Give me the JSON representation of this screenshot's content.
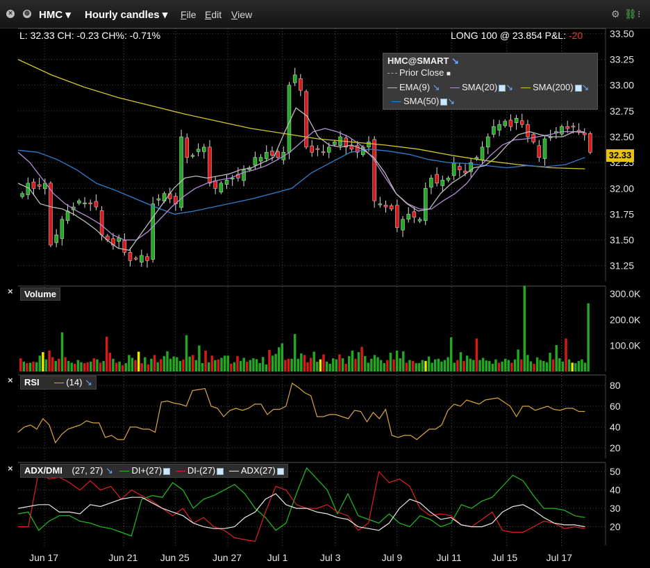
{
  "titlebar": {
    "symbol": "HMC",
    "interval": "Hourly candles",
    "menus": [
      "File",
      "Edit",
      "View"
    ]
  },
  "price_panel": {
    "summary": "L: 32.33 CH: -0.23 CH%: -0.71%",
    "position": "LONG 100 @ 23.854 P&L:",
    "pnl": "-20",
    "price_tag": "32.33",
    "legend": {
      "title": "HMC@SMART",
      "items": [
        "Prior Close",
        "EMA(9)",
        "SMA(20)",
        "SMA(200)",
        "SMA(50)"
      ]
    }
  },
  "volume_panel": {
    "title": "Volume"
  },
  "rsi_panel": {
    "title": "RSI",
    "param": "(14)"
  },
  "adx_panel": {
    "title": "ADX/DMI",
    "param": "(27, 27)",
    "di_plus": "DI+(27)",
    "di_minus": "DI-(27)",
    "adx": "ADX(27)"
  },
  "colors": {
    "up": "#22a822",
    "down": "#d61a1a",
    "yellow": "#e8e800",
    "ema9": "#bdbdbd",
    "sma20": "#b48ad6",
    "sma200": "#d4c829",
    "sma50": "#2f7fd0",
    "rsi": "#d8a640",
    "di_plus": "#20c020",
    "di_minus": "#e02020",
    "adx": "#e8e8e8"
  },
  "chart_data": [
    {
      "type": "candlestick",
      "title": "HMC",
      "x_ticks": [
        "Jun 17",
        "Jun 21",
        "Jun 25",
        "Jun 27",
        "Jul 1",
        "Jul 3",
        "Jul 9",
        "Jul 11",
        "Jul 15",
        "Jul 17"
      ],
      "y_ticks": [
        31.25,
        31.5,
        31.75,
        32.0,
        32.25,
        32.5,
        32.75,
        33.0,
        33.25,
        33.5
      ],
      "ylim": [
        31.1,
        33.55
      ],
      "close_path": [
        31.95,
        32.05,
        32.0,
        32.02,
        32.05,
        31.45,
        31.55,
        31.7,
        31.78,
        31.82,
        31.88,
        31.86,
        31.85,
        31.82,
        31.55,
        31.5,
        31.45,
        31.52,
        31.38,
        31.3,
        31.32,
        31.35,
        31.3,
        31.85,
        31.9,
        31.95,
        31.9,
        31.85,
        32.5,
        32.3,
        32.32,
        32.38,
        32.4,
        32.05,
        32.0,
        32.05,
        32.08,
        32.1,
        32.1,
        32.18,
        32.2,
        32.3,
        32.3,
        32.35,
        32.32,
        32.3,
        32.35,
        33.0,
        33.1,
        32.95,
        32.4,
        32.35,
        32.38,
        32.35,
        32.4,
        32.45,
        32.5,
        32.4,
        32.38,
        32.35,
        32.4,
        32.45,
        31.88,
        31.85,
        31.82,
        31.8,
        31.62,
        31.7,
        31.75,
        31.72,
        31.7,
        32.0,
        32.1,
        32.05,
        32.08,
        32.1,
        32.25,
        32.18,
        32.15,
        32.25,
        32.3,
        32.4,
        32.5,
        32.6,
        32.62,
        32.65,
        32.6,
        32.68,
        32.62,
        32.5,
        32.45,
        32.3,
        32.48,
        32.5,
        32.55,
        32.6,
        32.58,
        32.6,
        32.55,
        32.52,
        32.35
      ],
      "ema9": [
        32.05,
        32.0,
        31.85,
        31.82,
        31.8,
        31.75,
        31.68,
        31.6,
        31.5,
        31.42,
        31.4,
        31.55,
        31.7,
        31.85,
        32.0,
        32.1,
        32.12,
        32.1,
        32.12,
        32.14,
        32.18,
        32.2,
        32.25,
        32.3,
        32.55,
        32.78,
        32.7,
        32.5,
        32.42,
        32.4,
        32.42,
        32.38,
        32.3,
        32.15,
        31.95,
        31.85,
        31.78,
        31.8,
        31.95,
        32.05,
        32.12,
        32.2,
        32.22,
        32.3,
        32.42,
        32.52,
        32.55,
        32.52,
        32.5,
        32.5,
        32.55,
        32.54
      ],
      "sma20": [
        32.35,
        32.25,
        32.1,
        31.95,
        31.85,
        31.78,
        31.72,
        31.65,
        31.55,
        31.5,
        31.5,
        31.58,
        31.7,
        31.82,
        31.92,
        32.0,
        32.05,
        32.08,
        32.1,
        32.15,
        32.18,
        32.22,
        32.28,
        32.35,
        32.45,
        32.55,
        32.58,
        32.55,
        32.5,
        32.42,
        32.3,
        32.12,
        31.95,
        31.85,
        31.8,
        31.8,
        31.88,
        31.95,
        32.05,
        32.2,
        32.32,
        32.42,
        32.47,
        32.48,
        32.5,
        32.52,
        32.55,
        32.55,
        32.55
      ],
      "sma200": [
        33.25,
        33.1,
        32.98,
        32.88,
        32.8,
        32.72,
        32.65,
        32.58,
        32.53,
        32.48,
        32.45,
        32.42,
        32.38,
        32.32,
        32.27,
        32.23,
        32.2,
        32.19
      ],
      "sma50": [
        32.37,
        32.35,
        32.28,
        32.18,
        32.05,
        31.98,
        31.9,
        31.82,
        31.75,
        31.78,
        31.82,
        31.86,
        31.9,
        31.95,
        32.0,
        32.15,
        32.25,
        32.35,
        32.38,
        32.36,
        32.33,
        32.28,
        32.25,
        32.24,
        32.22,
        32.2,
        32.22,
        32.21,
        32.23,
        32.3
      ]
    },
    {
      "type": "bar",
      "title": "Volume",
      "y_ticks": [
        "100.0K",
        "200.0K",
        "300.0K"
      ],
      "ylim": [
        0,
        330000
      ],
      "values": [
        60,
        45,
        38,
        40,
        45,
        42,
        72,
        88,
        55,
        95,
        65,
        48,
        58,
        178,
        65,
        48,
        40,
        35,
        52,
        42,
        38,
        42,
        45,
        60,
        55,
        40,
        48,
        158,
        85,
        58,
        40,
        45,
        28,
        38,
        75,
        62,
        52,
        90,
        38,
        65,
        32,
        58,
        75,
        42,
        56,
        70,
        92,
        58,
        68,
        65,
        48,
        55,
        165,
        68,
        75,
        52,
        118,
        38,
        95,
        42,
        72,
        52,
        55,
        62,
        72,
        72,
        36,
        42,
        70,
        48,
        62,
        44,
        52,
        60,
        56,
        38,
        66,
        32,
        98,
        72,
        80,
        110,
        128,
        52,
        58,
        58,
        170,
        58,
        82,
        75,
        42,
        62,
        90,
        44,
        55,
        78,
        45,
        35,
        60,
        55,
        78,
        60,
        35,
        70,
        95,
        58,
        88,
        112,
        70,
        40,
        58,
        75,
        65,
        52,
        38,
        52,
        85,
        55,
        95,
        60,
        92,
        40,
        52,
        48,
        38,
        38,
        52,
        48,
        68,
        40,
        55,
        58,
        45,
        52,
        65,
        155,
        40,
        52,
        88,
        48,
        72,
        58,
        52,
        150,
        52,
        62,
        50,
        48,
        35,
        55,
        40,
        45,
        58,
        52,
        40,
        55,
        100,
        55,
        390,
        75,
        46,
        35,
        64,
        52,
        48,
        42,
        85,
        55,
        120,
        60,
        45,
        150,
        55,
        40,
        38,
        48,
        55,
        40,
        310
      ],
      "colors": [
        "d",
        "u",
        "d",
        "u",
        "d",
        "u",
        "u",
        "y",
        "u",
        "d",
        "d",
        "u",
        "d",
        "u",
        "d",
        "u",
        "u",
        "d",
        "u",
        "u",
        "d",
        "d",
        "u",
        "d",
        "u",
        "d",
        "u",
        "d",
        "d",
        "u",
        "d",
        "u",
        "d",
        "u",
        "u",
        "u",
        "d",
        "y",
        "d",
        "u",
        "d",
        "u",
        "d",
        "u",
        "d",
        "u",
        "u",
        "u",
        "u",
        "u",
        "u",
        "d",
        "u",
        "u",
        "d",
        "u",
        "u",
        "u",
        "d",
        "u",
        "d",
        "u",
        "d",
        "u",
        "u",
        "u",
        "d",
        "u",
        "d",
        "u",
        "u",
        "d",
        "u",
        "u",
        "u",
        "u",
        "u",
        "u",
        "d",
        "u",
        "u",
        "u",
        "u",
        "d",
        "d",
        "u",
        "u",
        "u",
        "u",
        "d",
        "d",
        "d",
        "u",
        "u",
        "y",
        "d",
        "u",
        "u",
        "u",
        "u",
        "d",
        "u",
        "d",
        "u",
        "u",
        "d",
        "u",
        "d",
        "u",
        "u",
        "u",
        "u",
        "u",
        "u",
        "u",
        "d",
        "u",
        "d",
        "u",
        "u",
        "u",
        "d",
        "u",
        "d",
        "u",
        "u",
        "u",
        "y",
        "u",
        "u",
        "u",
        "u",
        "u",
        "u",
        "u",
        "u",
        "u",
        "d",
        "u",
        "d",
        "u",
        "u",
        "u",
        "d",
        "u",
        "u",
        "u",
        "u",
        "u",
        "u",
        "d",
        "u",
        "u",
        "u",
        "d",
        "u",
        "u",
        "d",
        "u",
        "u",
        "u",
        "d",
        "u",
        "u",
        "u",
        "u",
        "u",
        "d",
        "u",
        "u",
        "u",
        "d",
        "u",
        "y",
        "u",
        "u",
        "u",
        "u",
        "u",
        "u"
      ]
    },
    {
      "type": "line",
      "title": "RSI",
      "y_ticks": [
        20,
        40,
        60,
        80
      ],
      "ylim": [
        10,
        90
      ],
      "series": [
        {
          "name": "RSI (14)",
          "values": [
            35,
            40,
            42,
            38,
            48,
            42,
            25,
            33,
            38,
            40,
            42,
            46,
            44,
            44,
            30,
            32,
            28,
            28,
            40,
            40,
            38,
            38,
            35,
            64,
            65,
            63,
            62,
            60,
            75,
            76,
            77,
            60,
            58,
            50,
            56,
            58,
            56,
            58,
            62,
            62,
            52,
            57,
            57,
            60,
            82,
            78,
            73,
            70,
            50,
            50,
            52,
            52,
            50,
            48,
            56,
            55,
            45,
            54,
            48,
            57,
            32,
            30,
            32,
            32,
            28,
            33,
            38,
            38,
            42,
            56,
            62,
            60,
            66,
            64,
            62,
            66,
            67,
            68,
            64,
            60,
            50,
            60,
            60,
            56,
            58,
            60,
            57,
            56,
            58,
            58,
            55,
            55
          ]
        }
      ]
    },
    {
      "type": "line",
      "title": "ADX/DMI",
      "y_ticks": [
        20,
        30,
        40,
        50
      ],
      "ylim": [
        10,
        55
      ],
      "series": [
        {
          "name": "DI+(27)",
          "values": [
            27,
            28,
            18,
            23,
            26,
            26,
            23,
            22,
            20,
            19,
            17,
            15,
            35,
            37,
            36,
            44,
            40,
            30,
            35,
            37,
            40,
            43,
            38,
            30,
            25,
            18,
            22,
            38,
            52,
            46,
            40,
            27,
            38,
            26,
            24,
            22,
            27,
            22,
            20,
            26,
            24,
            20,
            22,
            32,
            30,
            34,
            36,
            42,
            48,
            45,
            37,
            30,
            30,
            29,
            26,
            25
          ]
        },
        {
          "name": "DI-(27)",
          "values": [
            20,
            20,
            50,
            46,
            47,
            44,
            40,
            45,
            40,
            42,
            35,
            40,
            37,
            34,
            30,
            26,
            30,
            22,
            25,
            20,
            18,
            14,
            13,
            12,
            28,
            42,
            40,
            32,
            30,
            30,
            32,
            28,
            26,
            18,
            22,
            50,
            44,
            46,
            42,
            30,
            26,
            27,
            26,
            21,
            20,
            24,
            28,
            18,
            17,
            17,
            20,
            23,
            22,
            19,
            20,
            19
          ]
        },
        {
          "name": "ADX(27)",
          "values": [
            30,
            31,
            32,
            32,
            28,
            28,
            27,
            32,
            31,
            33,
            35,
            36,
            36,
            33,
            30,
            28,
            26,
            22,
            20,
            19,
            19,
            20,
            25,
            28,
            35,
            38,
            32,
            30,
            30,
            28,
            27,
            25,
            24,
            20,
            19,
            18,
            22,
            30,
            35,
            33,
            28,
            24,
            25,
            21,
            20,
            20,
            22,
            28,
            31,
            32,
            29,
            25,
            22,
            21,
            21,
            20
          ]
        }
      ]
    }
  ]
}
